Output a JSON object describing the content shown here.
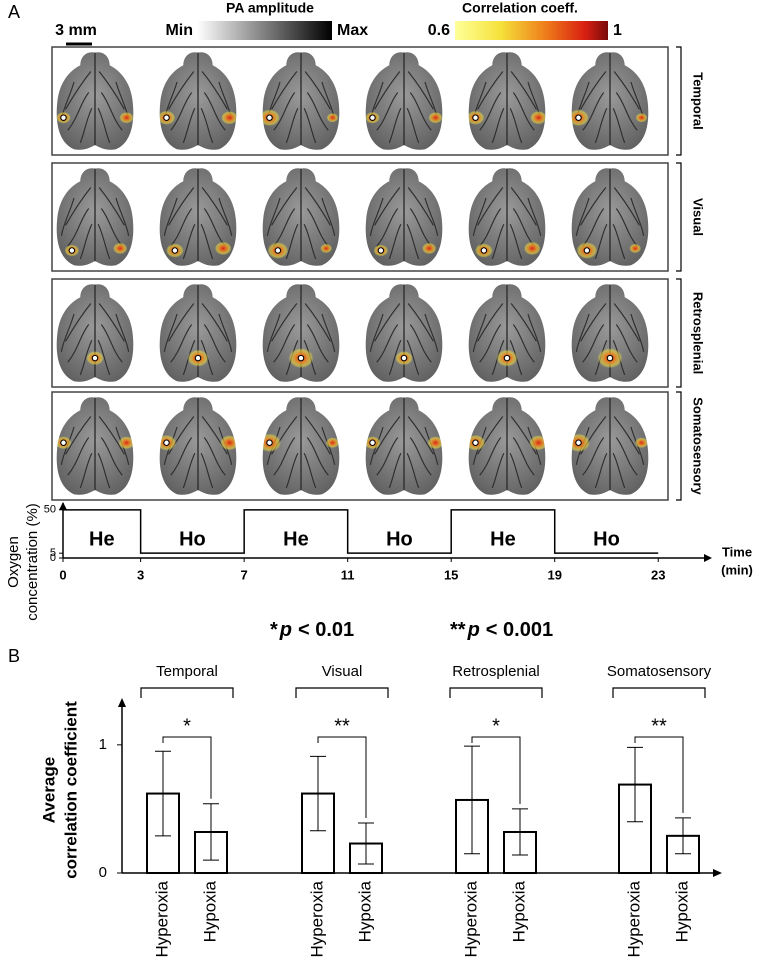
{
  "panel_labels": [
    "A",
    "B"
  ],
  "scale_bar": "3 mm",
  "pa_colorbar": {
    "title": "PA amplitude",
    "min_label": "Min",
    "max_label": "Max"
  },
  "corr_colorbar": {
    "title": "Correlation coeff.",
    "min": 0.6,
    "max": 1
  },
  "image_rows": [
    "Temporal",
    "Visual",
    "Retrosplenial",
    "Somatosensory"
  ],
  "chart_data": [
    {
      "type": "line",
      "ylabel": [
        "Oxygen",
        "concentration (%)"
      ],
      "xlabel": [
        "Time",
        "(min)"
      ],
      "x": [
        0,
        3,
        3,
        7,
        7,
        11,
        11,
        15,
        15,
        19,
        19,
        23
      ],
      "values": [
        50,
        50,
        5,
        5,
        50,
        50,
        5,
        5,
        50,
        50,
        5,
        5
      ],
      "annotations": [
        "He",
        "Ho",
        "He",
        "Ho",
        "He",
        "Ho"
      ],
      "color": "#000000",
      "xlim": [
        0,
        25
      ],
      "ylim": [
        0,
        55
      ],
      "xticks": [
        0,
        3,
        7,
        11,
        15,
        19,
        23
      ],
      "yticks": [
        0,
        5,
        50
      ]
    },
    {
      "type": "bar",
      "ylabel": [
        "Average",
        "correlation coefficient"
      ],
      "categories": [
        "Temporal",
        "Visual",
        "Retrosplenial",
        "Somatosensory"
      ],
      "significance": [
        "*",
        "**",
        "*",
        "**"
      ],
      "significance_legend": [
        {
          "stars": "*",
          "symbol": "p",
          "threshold": "< 0.01"
        },
        {
          "stars": "**",
          "symbol": "p",
          "threshold": "< 0.001"
        }
      ],
      "series": [
        {
          "name": "Hyperoxia",
          "color": "#ffffff",
          "values": [
            0.62,
            0.62,
            0.57,
            0.69
          ],
          "errors": [
            0.33,
            0.29,
            0.42,
            0.29
          ]
        },
        {
          "name": "Hypoxia",
          "color": "#ffffff",
          "values": [
            0.32,
            0.23,
            0.32,
            0.29
          ],
          "errors": [
            0.22,
            0.16,
            0.18,
            0.14
          ]
        }
      ],
      "ylim": [
        0,
        1.35
      ],
      "yticks": [
        0,
        1
      ]
    }
  ]
}
